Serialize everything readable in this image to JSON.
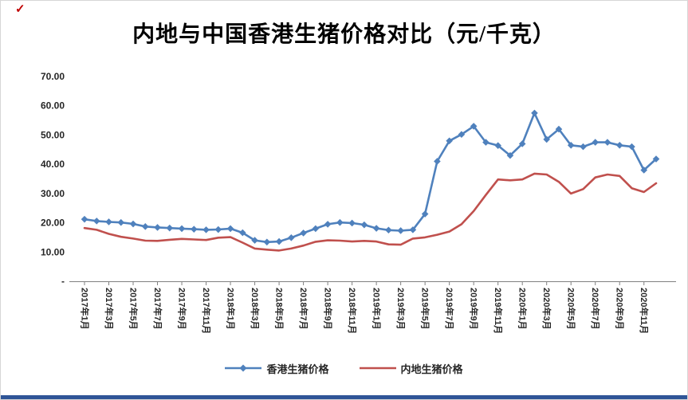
{
  "page": {
    "corner_mark": "✓",
    "bottom_bar_color": "#2F5597",
    "background": "#ffffff"
  },
  "chart_data": {
    "type": "line",
    "title": "内地与中国香港生猪价格对比（元/千克）",
    "xlabel": "",
    "ylabel": "",
    "ylim": [
      0,
      70
    ],
    "y_tick_step": 10,
    "grid": false,
    "legend_position": "bottom",
    "y_tick_labels": [
      "-",
      "10.00",
      "20.00",
      "30.00",
      "40.00",
      "50.00",
      "60.00",
      "70.00"
    ],
    "x_tick_labels_shown": [
      "2017年1月",
      "2017年3月",
      "2017年5月",
      "2017年7月",
      "2017年9月",
      "2017年11月",
      "2018年1月",
      "2018年3月",
      "2018年5月",
      "2018年7月",
      "2018年9月",
      "2018年11月",
      "2019年1月",
      "2019年3月",
      "2019年5月",
      "2019年7月",
      "2019年9月",
      "2019年11月",
      "2020年1月",
      "2020年3月",
      "2020年5月",
      "2020年7月",
      "2020年9月",
      "2020年11月"
    ],
    "categories": [
      "2017年1月",
      "2017年2月",
      "2017年3月",
      "2017年4月",
      "2017年5月",
      "2017年6月",
      "2017年7月",
      "2017年8月",
      "2017年9月",
      "2017年10月",
      "2017年11月",
      "2017年12月",
      "2018年1月",
      "2018年2月",
      "2018年3月",
      "2018年4月",
      "2018年5月",
      "2018年6月",
      "2018年7月",
      "2018年8月",
      "2018年9月",
      "2018年10月",
      "2018年11月",
      "2018年12月",
      "2019年1月",
      "2019年2月",
      "2019年3月",
      "2019年4月",
      "2019年5月",
      "2019年6月",
      "2019年7月",
      "2019年8月",
      "2019年9月",
      "2019年10月",
      "2019年11月",
      "2019年12月",
      "2020年1月",
      "2020年2月",
      "2020年3月",
      "2020年4月",
      "2020年5月",
      "2020年6月",
      "2020年7月",
      "2020年8月",
      "2020年9月",
      "2020年10月",
      "2020年11月",
      "2020年12月"
    ],
    "series": [
      {
        "name": "香港生猪价格",
        "color": "#4F81BD",
        "marker": "diamond",
        "values": [
          21.2,
          20.6,
          20.3,
          20.1,
          19.6,
          18.7,
          18.4,
          18.2,
          18.0,
          17.8,
          17.6,
          17.7,
          18.0,
          16.6,
          14.0,
          13.4,
          13.6,
          14.9,
          16.5,
          18.0,
          19.5,
          20.1,
          19.9,
          19.3,
          18.1,
          17.5,
          17.3,
          17.6,
          23.0,
          41.0,
          48.0,
          50.2,
          53.0,
          47.5,
          46.4,
          43.0,
          47.0,
          57.5,
          48.5,
          52.0,
          46.5,
          46.0,
          47.5,
          47.5,
          46.5,
          46.0,
          38.0,
          41.8
        ]
      },
      {
        "name": "内地生猪价格",
        "color": "#C0504D",
        "marker": "none",
        "values": [
          18.2,
          17.6,
          16.2,
          15.2,
          14.6,
          13.9,
          13.8,
          14.2,
          14.5,
          14.3,
          14.1,
          14.9,
          15.1,
          13.2,
          11.2,
          10.8,
          10.5,
          11.2,
          12.2,
          13.5,
          14.0,
          13.9,
          13.6,
          13.8,
          13.6,
          12.6,
          12.5,
          14.6,
          15.0,
          15.9,
          17.0,
          19.5,
          24.0,
          29.5,
          34.8,
          34.5,
          34.8,
          36.8,
          36.5,
          34.0,
          30.0,
          31.5,
          35.5,
          36.5,
          36.0,
          31.8,
          30.5,
          33.5
        ]
      }
    ]
  }
}
